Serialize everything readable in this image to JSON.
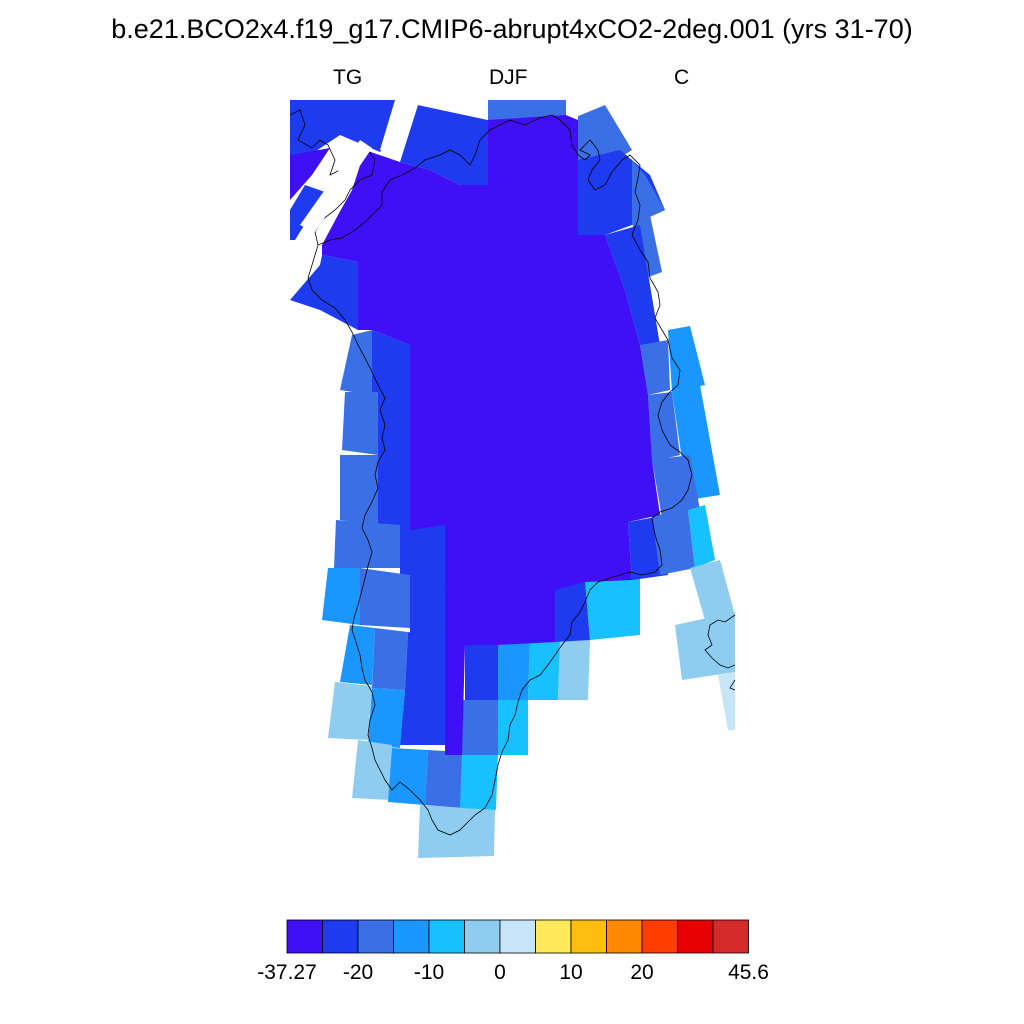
{
  "title": "b.e21.BCO2x4.f19_g17.CMIP6-abrupt4xCO2-2deg.001 (yrs 31-70)",
  "subtitle_left": "TG",
  "subtitle_center": "DJF",
  "subtitle_right": "C",
  "colorbar": {
    "colors": [
      "#3f10f5",
      "#1e3bf0",
      "#3a6fe6",
      "#1a96ff",
      "#17c0ff",
      "#8ecdf0",
      "#c7e5f8",
      "#ffe95a",
      "#ffbd10",
      "#ff8800",
      "#ff3c00",
      "#e60000",
      "#d42a2a"
    ],
    "labels": [
      "-37.27",
      "-20",
      "-10",
      "0",
      "10",
      "20",
      "45.6"
    ],
    "min": -37.27,
    "max": 45.6
  },
  "legend_colors": {
    "c1": "#3f10f5",
    "c2": "#1e3bf0",
    "c3": "#3a6fe6",
    "c4": "#1a96ff",
    "c5": "#17c0ff",
    "c6": "#8ecdf0",
    "c7": "#c7e5f8"
  }
}
